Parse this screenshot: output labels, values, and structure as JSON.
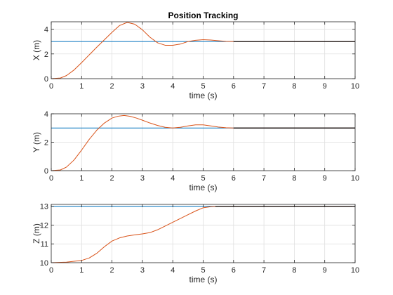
{
  "chart_data": [
    {
      "type": "line",
      "title": "Position Tracking",
      "xlabel": "time (s)",
      "ylabel": "X (m)",
      "xlim": [
        0,
        10
      ],
      "ylim": [
        0,
        4.6
      ],
      "xticks": [
        0,
        1,
        2,
        3,
        4,
        5,
        6,
        7,
        8,
        9,
        10
      ],
      "yticks": [
        0,
        2,
        4
      ],
      "grid": true,
      "series": [
        {
          "color": "#0072BD",
          "x": [
            0,
            10
          ],
          "y": [
            3,
            3
          ]
        },
        {
          "color": "#D95319",
          "x": [
            0,
            0.3,
            0.5,
            0.75,
            1,
            1.5,
            2,
            2.25,
            2.5,
            2.75,
            3,
            3.25,
            3.5,
            3.75,
            4,
            4.25,
            4.5,
            4.75,
            5,
            5.25,
            5.5,
            5.75,
            6,
            6.5,
            7,
            7.5,
            8,
            9,
            10
          ],
          "y": [
            0,
            0.05,
            0.25,
            0.7,
            1.3,
            2.55,
            3.75,
            4.3,
            4.55,
            4.4,
            3.95,
            3.35,
            2.9,
            2.7,
            2.7,
            2.8,
            3.0,
            3.1,
            3.15,
            3.12,
            3.07,
            3.02,
            3.0,
            3.0,
            3.0,
            3.0,
            3.0,
            3.0,
            3.0
          ]
        },
        {
          "color": "#000000",
          "x": [
            6,
            10
          ],
          "y": [
            3,
            3
          ]
        }
      ]
    },
    {
      "type": "line",
      "xlabel": "time (s)",
      "ylabel": "Y (m)",
      "xlim": [
        0,
        10
      ],
      "ylim": [
        0,
        4
      ],
      "xticks": [
        0,
        1,
        2,
        3,
        4,
        5,
        6,
        7,
        8,
        9,
        10
      ],
      "yticks": [
        0,
        2,
        4
      ],
      "grid": true,
      "series": [
        {
          "color": "#0072BD",
          "x": [
            0,
            10
          ],
          "y": [
            3,
            3
          ]
        },
        {
          "color": "#D95319",
          "x": [
            0,
            0.3,
            0.5,
            0.75,
            1,
            1.25,
            1.5,
            1.75,
            2,
            2.2,
            2.4,
            2.6,
            2.8,
            3,
            3.25,
            3.5,
            3.75,
            4,
            4.25,
            4.5,
            4.75,
            5,
            5.25,
            5.5,
            5.75,
            6,
            7,
            8,
            9,
            10
          ],
          "y": [
            0,
            0.05,
            0.25,
            0.75,
            1.45,
            2.2,
            2.85,
            3.35,
            3.7,
            3.83,
            3.88,
            3.82,
            3.7,
            3.55,
            3.35,
            3.18,
            3.05,
            3.0,
            3.05,
            3.15,
            3.22,
            3.22,
            3.15,
            3.07,
            3.02,
            3.0,
            3.0,
            3.0,
            3.0,
            3.0
          ]
        },
        {
          "color": "#000000",
          "x": [
            6,
            10
          ],
          "y": [
            3,
            3
          ]
        }
      ]
    },
    {
      "type": "line",
      "xlabel": "time (s)",
      "ylabel": "Z (m)",
      "xlim": [
        0,
        10
      ],
      "ylim": [
        10,
        13.1
      ],
      "xticks": [
        0,
        1,
        2,
        3,
        4,
        5,
        6,
        7,
        8,
        9,
        10
      ],
      "yticks": [
        10,
        11,
        12,
        13
      ],
      "grid": true,
      "series": [
        {
          "color": "#0072BD",
          "x": [
            0,
            10
          ],
          "y": [
            13,
            13
          ]
        },
        {
          "color": "#D95319",
          "x": [
            0,
            0.5,
            1,
            1.25,
            1.5,
            1.75,
            2,
            2.25,
            2.5,
            2.75,
            3,
            3.25,
            3.5,
            3.75,
            4,
            4.25,
            4.5,
            4.75,
            5,
            5.25,
            5.5,
            6,
            7,
            8,
            9,
            10
          ],
          "y": [
            10,
            10.03,
            10.12,
            10.25,
            10.5,
            10.85,
            11.15,
            11.32,
            11.42,
            11.48,
            11.53,
            11.6,
            11.75,
            11.95,
            12.15,
            12.35,
            12.55,
            12.75,
            12.92,
            12.98,
            13.0,
            13.0,
            13.0,
            13.0,
            13.0,
            13.0
          ]
        },
        {
          "color": "#000000",
          "x": [
            5.4,
            10
          ],
          "y": [
            13,
            13
          ]
        }
      ]
    }
  ]
}
